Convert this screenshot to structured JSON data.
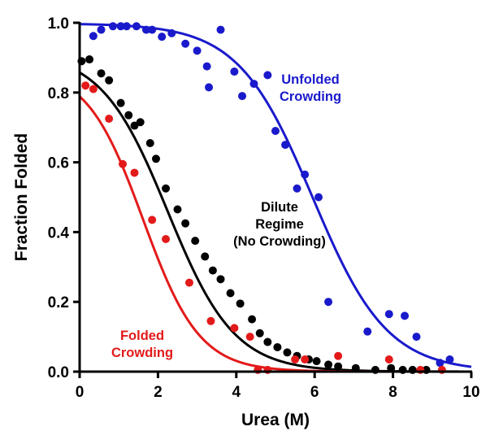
{
  "chart_data": {
    "type": "scatter",
    "xlabel": "Urea (M)",
    "ylabel": "Fraction Folded",
    "xlim": [
      0,
      10
    ],
    "ylim": [
      0,
      1.0
    ],
    "x_ticks": [
      "0",
      "2",
      "4",
      "6",
      "8",
      "10"
    ],
    "y_ticks": [
      "0.0",
      "0.2",
      "0.4",
      "0.6",
      "0.8",
      "1.0"
    ],
    "grid": false,
    "legend": "none",
    "series": [
      {
        "color": "#1a1acc",
        "curve": "sigmoid fit",
        "points": [
          [
            0.35,
            0.962
          ],
          [
            0.55,
            0.98
          ],
          [
            0.85,
            0.99
          ],
          [
            1.05,
            0.99
          ],
          [
            1.2,
            0.99
          ],
          [
            1.45,
            0.99
          ],
          [
            1.7,
            0.98
          ],
          [
            1.85,
            0.98
          ],
          [
            2.1,
            0.96
          ],
          [
            2.35,
            0.97
          ],
          [
            2.7,
            0.94
          ],
          [
            3.0,
            0.92
          ],
          [
            3.25,
            0.875
          ],
          [
            3.3,
            0.815
          ],
          [
            3.6,
            0.98
          ],
          [
            3.95,
            0.86
          ],
          [
            4.15,
            0.79
          ],
          [
            4.45,
            0.825
          ],
          [
            4.8,
            0.85
          ],
          [
            5.0,
            0.69
          ],
          [
            5.25,
            0.65
          ],
          [
            5.55,
            0.525
          ],
          [
            5.75,
            0.565
          ],
          [
            6.1,
            0.5
          ],
          [
            6.35,
            0.2
          ],
          [
            7.35,
            0.115
          ],
          [
            7.9,
            0.165
          ],
          [
            8.3,
            0.16
          ],
          [
            8.6,
            0.1
          ],
          [
            9.2,
            0.025
          ],
          [
            9.45,
            0.035
          ]
        ]
      },
      {
        "color": "#000000",
        "curve": "sigmoid fit",
        "points": [
          [
            0.05,
            0.89
          ],
          [
            0.25,
            0.895
          ],
          [
            0.55,
            0.855
          ],
          [
            0.75,
            0.835
          ],
          [
            1.05,
            0.77
          ],
          [
            1.25,
            0.735
          ],
          [
            1.4,
            0.705
          ],
          [
            1.55,
            0.715
          ],
          [
            1.8,
            0.655
          ],
          [
            1.95,
            0.61
          ],
          [
            2.2,
            0.525
          ],
          [
            2.5,
            0.465
          ],
          [
            2.7,
            0.425
          ],
          [
            2.95,
            0.375
          ],
          [
            3.2,
            0.33
          ],
          [
            3.4,
            0.29
          ],
          [
            3.6,
            0.265
          ],
          [
            3.85,
            0.225
          ],
          [
            4.1,
            0.195
          ],
          [
            4.4,
            0.15
          ],
          [
            4.6,
            0.11
          ],
          [
            4.8,
            0.085
          ],
          [
            5.05,
            0.07
          ],
          [
            5.3,
            0.055
          ],
          [
            5.55,
            0.045
          ],
          [
            5.85,
            0.035
          ],
          [
            6.05,
            0.03
          ],
          [
            6.35,
            0.02
          ],
          [
            6.6,
            0.015
          ],
          [
            7.05,
            0.01
          ],
          [
            7.55,
            0.005
          ],
          [
            7.95,
            0.01
          ],
          [
            8.25,
            0.005
          ],
          [
            8.5,
            0.005
          ],
          [
            8.85,
            0.005
          ]
        ]
      },
      {
        "color": "#e31a1a",
        "curve": "sigmoid fit",
        "points": [
          [
            0.15,
            0.82
          ],
          [
            0.35,
            0.81
          ],
          [
            0.75,
            0.725
          ],
          [
            1.1,
            0.595
          ],
          [
            1.4,
            0.57
          ],
          [
            1.85,
            0.435
          ],
          [
            2.2,
            0.38
          ],
          [
            2.8,
            0.255
          ],
          [
            3.35,
            0.145
          ],
          [
            3.95,
            0.125
          ],
          [
            4.35,
            0.1
          ],
          [
            4.55,
            0.005
          ],
          [
            4.8,
            0.005
          ],
          [
            5.5,
            0.035
          ],
          [
            5.75,
            0.035
          ],
          [
            6.6,
            0.045
          ],
          [
            7.9,
            0.035
          ],
          [
            8.7,
            0.005
          ],
          [
            9.25,
            0.005
          ]
        ]
      }
    ],
    "annotations": [
      {
        "id": "unfolded",
        "color": "#1a1acc",
        "lines": [
          "Unfolded",
          "Crowding"
        ]
      },
      {
        "id": "dilute",
        "color": "#000000",
        "lines": [
          "Dilute",
          "Regime",
          "(No Crowding)"
        ]
      },
      {
        "id": "folded",
        "color": "#e31a1a",
        "lines": [
          "Folded",
          "Crowding"
        ]
      }
    ]
  }
}
